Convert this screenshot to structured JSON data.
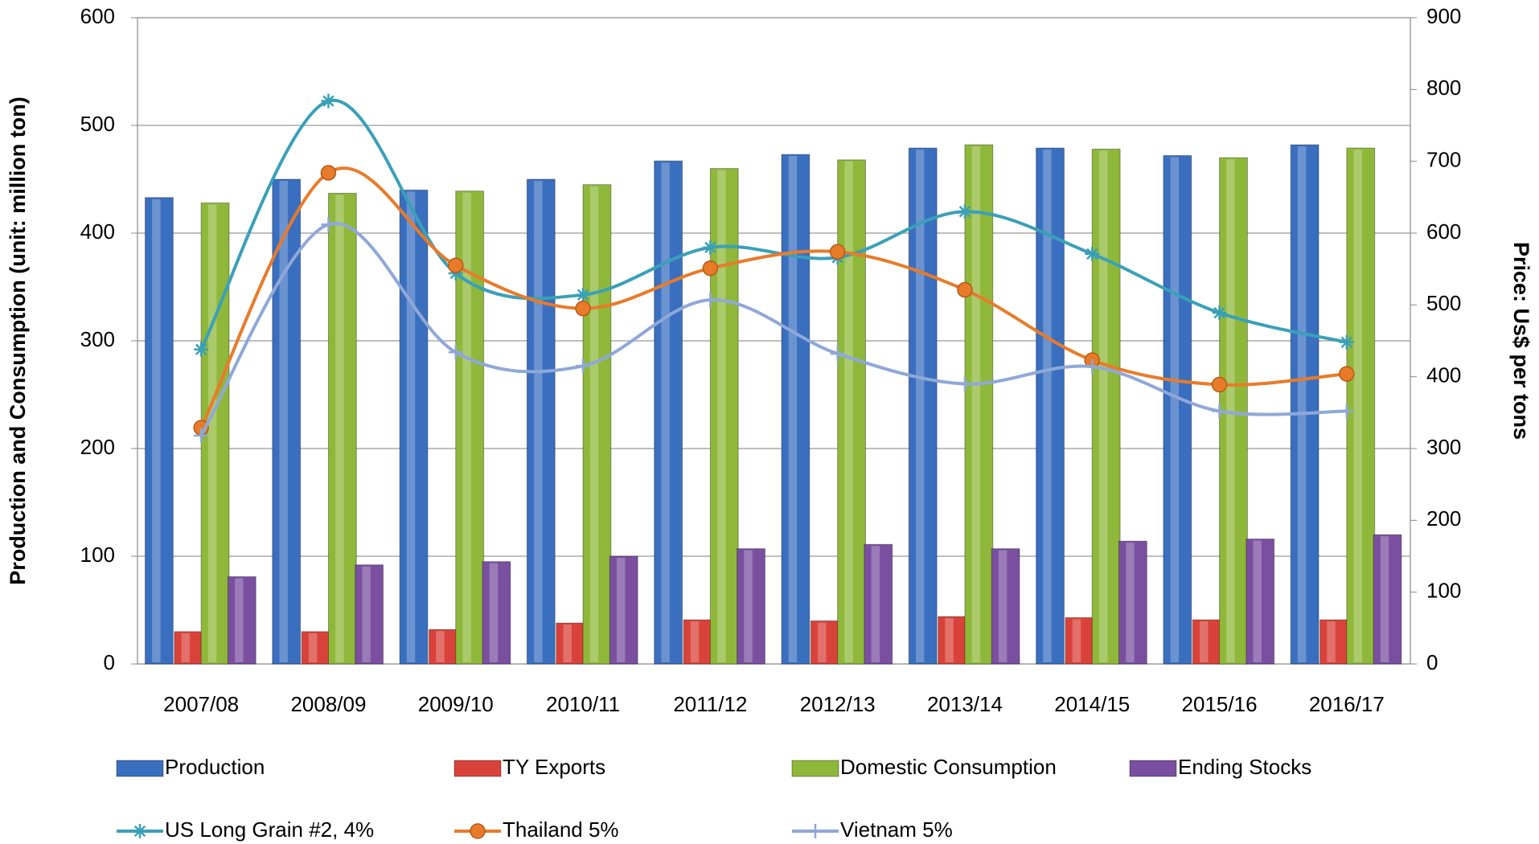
{
  "chart_data": {
    "type": "bar",
    "y_label": "Production and Consumption (unit: million ton)",
    "y2_label": "Price: Us$ per tons",
    "categories": [
      "2007/08",
      "2008/09",
      "2009/10",
      "2010/11",
      "2011/12",
      "2012/13",
      "2013/14",
      "2014/15",
      "2015/16",
      "2016/17"
    ],
    "ylim": [
      0,
      600
    ],
    "yticks": [
      0,
      100,
      200,
      300,
      400,
      500,
      600
    ],
    "y2lim": [
      0,
      900
    ],
    "y2ticks": [
      0,
      100,
      200,
      300,
      400,
      500,
      600,
      700,
      800,
      900
    ],
    "grid": true,
    "series": [
      {
        "name": "Production",
        "type": "bar",
        "color": "#3a6fc0",
        "values": [
          433,
          450,
          440,
          450,
          467,
          473,
          479,
          479,
          472,
          482
        ]
      },
      {
        "name": "TY Exports",
        "type": "bar",
        "color": "#d9423a",
        "values": [
          30,
          30,
          32,
          38,
          41,
          40,
          44,
          43,
          41,
          41
        ]
      },
      {
        "name": "Domestic Consumption",
        "type": "bar",
        "color": "#8fb83a",
        "values": [
          428,
          437,
          439,
          445,
          460,
          468,
          482,
          478,
          470,
          479
        ]
      },
      {
        "name": "Ending Stocks",
        "type": "bar",
        "color": "#7a4fa0",
        "values": [
          81,
          92,
          95,
          100,
          107,
          111,
          107,
          114,
          116,
          120
        ]
      },
      {
        "name": "US Long Grain #2, 4%",
        "type": "line",
        "axis": "y2",
        "marker": "star",
        "color": "#3aa0b8",
        "values": [
          438,
          784,
          544,
          514,
          580,
          566,
          630,
          571,
          489,
          448
        ]
      },
      {
        "name": "Thailand 5%",
        "type": "line",
        "axis": "y2",
        "marker": "circle",
        "color": "#e87b2a",
        "values": [
          329,
          684,
          555,
          495,
          551,
          574,
          521,
          423,
          389,
          404
        ]
      },
      {
        "name": "Vietnam 5%",
        "type": "line",
        "axis": "y2",
        "marker": "plus",
        "color": "#8fa8d8",
        "values": [
          318,
          612,
          434,
          415,
          507,
          432,
          390,
          414,
          352,
          352
        ]
      }
    ]
  }
}
